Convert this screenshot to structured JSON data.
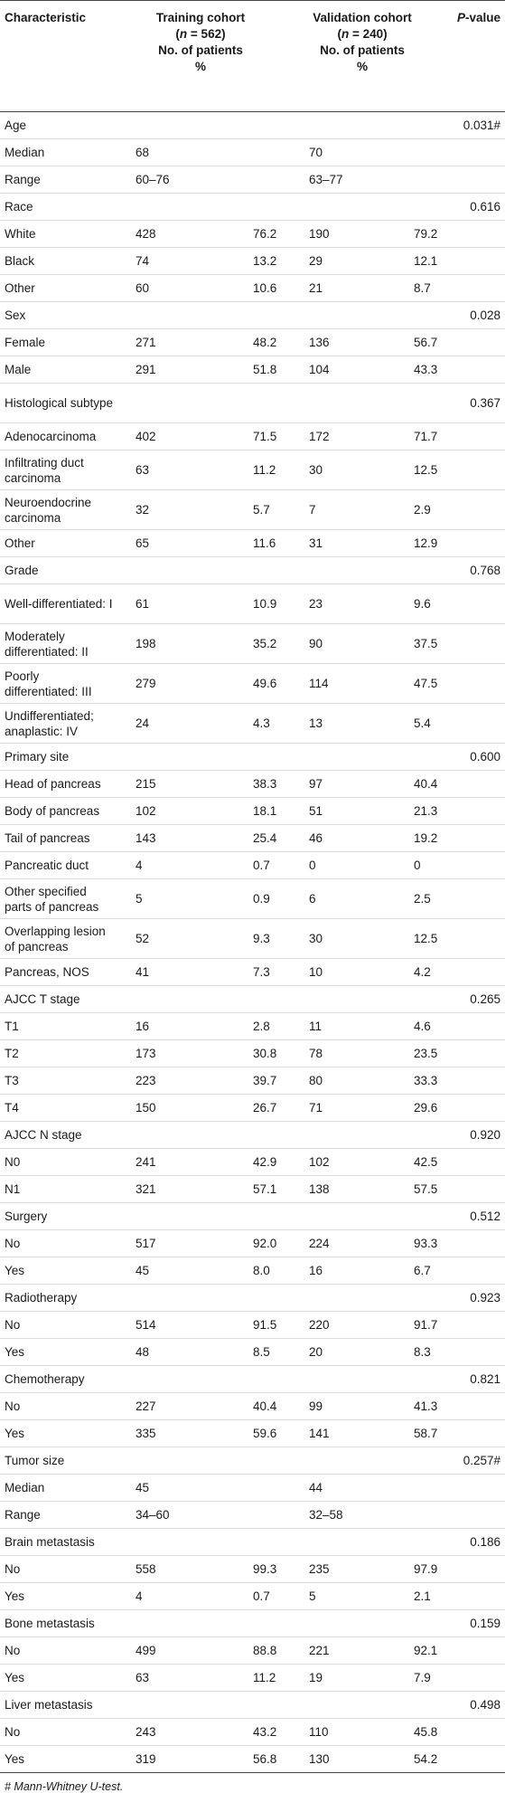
{
  "header": {
    "characteristic": "Characteristic",
    "training_line1": "Training cohort",
    "training_n_prefix": "(",
    "training_n_var": "n",
    "training_n_rest": " = 562)",
    "training_line3": "No. of patients",
    "training_line4": "%",
    "validation_line1": "Validation cohort",
    "validation_n_prefix": "(",
    "validation_n_var": "n",
    "validation_n_rest": " = 240)",
    "validation_line3": "No. of patients",
    "validation_line4": "%",
    "pvalue_var": "P",
    "pvalue_rest": "-value"
  },
  "rows": [
    {
      "label": "Age",
      "t_n": "",
      "t_pct": "",
      "v_n": "",
      "v_pct": "",
      "p": "0.031#"
    },
    {
      "label": "Median",
      "t_n": "68",
      "t_pct": "",
      "v_n": "70",
      "v_pct": "",
      "p": ""
    },
    {
      "label": "Range",
      "t_n": "60–76",
      "t_pct": "",
      "v_n": "63–77",
      "v_pct": "",
      "p": ""
    },
    {
      "label": "Race",
      "t_n": "",
      "t_pct": "",
      "v_n": "",
      "v_pct": "",
      "p": "0.616"
    },
    {
      "label": "White",
      "t_n": "428",
      "t_pct": "76.2",
      "v_n": "190",
      "v_pct": "79.2",
      "p": ""
    },
    {
      "label": "Black",
      "t_n": "74",
      "t_pct": "13.2",
      "v_n": "29",
      "v_pct": "12.1",
      "p": ""
    },
    {
      "label": "Other",
      "t_n": "60",
      "t_pct": "10.6",
      "v_n": "21",
      "v_pct": "8.7",
      "p": ""
    },
    {
      "label": "Sex",
      "t_n": "",
      "t_pct": "",
      "v_n": "",
      "v_pct": "",
      "p": "0.028"
    },
    {
      "label": "Female",
      "t_n": "271",
      "t_pct": "48.2",
      "v_n": "136",
      "v_pct": "56.7",
      "p": ""
    },
    {
      "label": "Male",
      "t_n": "291",
      "t_pct": "51.8",
      "v_n": "104",
      "v_pct": "43.3",
      "p": ""
    },
    {
      "label": "Histological subtype",
      "t_n": "",
      "t_pct": "",
      "v_n": "",
      "v_pct": "",
      "p": "0.367",
      "tall": true
    },
    {
      "label": "Adenocarcinoma",
      "t_n": "402",
      "t_pct": "71.5",
      "v_n": "172",
      "v_pct": "71.7",
      "p": ""
    },
    {
      "label": "Infiltrating duct carcinoma",
      "t_n": "63",
      "t_pct": "11.2",
      "v_n": "30",
      "v_pct": "12.5",
      "p": "",
      "tall": true
    },
    {
      "label": "Neuroendocrine carcinoma",
      "t_n": "32",
      "t_pct": "5.7",
      "v_n": "7",
      "v_pct": "2.9",
      "p": "",
      "tall": true
    },
    {
      "label": "Other",
      "t_n": "65",
      "t_pct": "11.6",
      "v_n": "31",
      "v_pct": "12.9",
      "p": ""
    },
    {
      "label": "Grade",
      "t_n": "",
      "t_pct": "",
      "v_n": "",
      "v_pct": "",
      "p": "0.768"
    },
    {
      "label": "Well-differentiated: I",
      "t_n": "61",
      "t_pct": "10.9",
      "v_n": "23",
      "v_pct": "9.6",
      "p": "",
      "tall": true
    },
    {
      "label": "Moderately differentiated: II",
      "t_n": "198",
      "t_pct": "35.2",
      "v_n": "90",
      "v_pct": "37.5",
      "p": "",
      "tall": true
    },
    {
      "label": "Poorly differentiated: III",
      "t_n": "279",
      "t_pct": "49.6",
      "v_n": "114",
      "v_pct": "47.5",
      "p": "",
      "tall": true
    },
    {
      "label": "Undifferentiated; anaplastic: IV",
      "t_n": "24",
      "t_pct": "4.3",
      "v_n": "13",
      "v_pct": "5.4",
      "p": "",
      "tall": true
    },
    {
      "label": "Primary site",
      "t_n": "",
      "t_pct": "",
      "v_n": "",
      "v_pct": "",
      "p": "0.600"
    },
    {
      "label": "Head of pancreas",
      "t_n": "215",
      "t_pct": "38.3",
      "v_n": "97",
      "v_pct": "40.4",
      "p": ""
    },
    {
      "label": "Body of pancreas",
      "t_n": "102",
      "t_pct": "18.1",
      "v_n": "51",
      "v_pct": "21.3",
      "p": ""
    },
    {
      "label": "Tail of pancreas",
      "t_n": "143",
      "t_pct": "25.4",
      "v_n": "46",
      "v_pct": "19.2",
      "p": ""
    },
    {
      "label": "Pancreatic duct",
      "t_n": "4",
      "t_pct": "0.7",
      "v_n": "0",
      "v_pct": "0",
      "p": ""
    },
    {
      "label": "Other specified parts of pancreas",
      "t_n": "5",
      "t_pct": "0.9",
      "v_n": "6",
      "v_pct": "2.5",
      "p": "",
      "tall": true
    },
    {
      "label": "Overlapping lesion of pancreas",
      "t_n": "52",
      "t_pct": "9.3",
      "v_n": "30",
      "v_pct": "12.5",
      "p": "",
      "tall": true
    },
    {
      "label": "Pancreas, NOS",
      "t_n": "41",
      "t_pct": "7.3",
      "v_n": "10",
      "v_pct": "4.2",
      "p": ""
    },
    {
      "label": "AJCC T stage",
      "t_n": "",
      "t_pct": "",
      "v_n": "",
      "v_pct": "",
      "p": "0.265"
    },
    {
      "label": "T1",
      "t_n": "16",
      "t_pct": "2.8",
      "v_n": "11",
      "v_pct": "4.6",
      "p": ""
    },
    {
      "label": "T2",
      "t_n": "173",
      "t_pct": "30.8",
      "v_n": "78",
      "v_pct": "23.5",
      "p": ""
    },
    {
      "label": "T3",
      "t_n": "223",
      "t_pct": "39.7",
      "v_n": "80",
      "v_pct": "33.3",
      "p": ""
    },
    {
      "label": "T4",
      "t_n": "150",
      "t_pct": "26.7",
      "v_n": "71",
      "v_pct": "29.6",
      "p": ""
    },
    {
      "label": "AJCC N stage",
      "t_n": "",
      "t_pct": "",
      "v_n": "",
      "v_pct": "",
      "p": "0.920"
    },
    {
      "label": "N0",
      "t_n": "241",
      "t_pct": "42.9",
      "v_n": "102",
      "v_pct": "42.5",
      "p": ""
    },
    {
      "label": "N1",
      "t_n": "321",
      "t_pct": "57.1",
      "v_n": "138",
      "v_pct": "57.5",
      "p": ""
    },
    {
      "label": "Surgery",
      "t_n": "",
      "t_pct": "",
      "v_n": "",
      "v_pct": "",
      "p": "0.512"
    },
    {
      "label": "No",
      "t_n": "517",
      "t_pct": "92.0",
      "v_n": "224",
      "v_pct": "93.3",
      "p": ""
    },
    {
      "label": "Yes",
      "t_n": "45",
      "t_pct": "8.0",
      "v_n": "16",
      "v_pct": "6.7",
      "p": ""
    },
    {
      "label": "Radiotherapy",
      "t_n": "",
      "t_pct": "",
      "v_n": "",
      "v_pct": "",
      "p": "0.923"
    },
    {
      "label": "No",
      "t_n": "514",
      "t_pct": "91.5",
      "v_n": "220",
      "v_pct": "91.7",
      "p": ""
    },
    {
      "label": "Yes",
      "t_n": "48",
      "t_pct": "8.5",
      "v_n": "20",
      "v_pct": "8.3",
      "p": ""
    },
    {
      "label": "Chemotherapy",
      "t_n": "",
      "t_pct": "",
      "v_n": "",
      "v_pct": "",
      "p": "0.821"
    },
    {
      "label": "No",
      "t_n": "227",
      "t_pct": "40.4",
      "v_n": "99",
      "v_pct": "41.3",
      "p": ""
    },
    {
      "label": "Yes",
      "t_n": "335",
      "t_pct": "59.6",
      "v_n": "141",
      "v_pct": "58.7",
      "p": ""
    },
    {
      "label": "Tumor size",
      "t_n": "",
      "t_pct": "",
      "v_n": "",
      "v_pct": "",
      "p": "0.257#"
    },
    {
      "label": "Median",
      "t_n": "45",
      "t_pct": "",
      "v_n": "44",
      "v_pct": "",
      "p": ""
    },
    {
      "label": "Range",
      "t_n": "34–60",
      "t_pct": "",
      "v_n": "32–58",
      "v_pct": "",
      "p": ""
    },
    {
      "label": "Brain metastasis",
      "t_n": "",
      "t_pct": "",
      "v_n": "",
      "v_pct": "",
      "p": "0.186"
    },
    {
      "label": "No",
      "t_n": "558",
      "t_pct": "99.3",
      "v_n": "235",
      "v_pct": "97.9",
      "p": ""
    },
    {
      "label": "Yes",
      "t_n": "4",
      "t_pct": "0.7",
      "v_n": "5",
      "v_pct": "2.1",
      "p": ""
    },
    {
      "label": "Bone metastasis",
      "t_n": "",
      "t_pct": "",
      "v_n": "",
      "v_pct": "",
      "p": "0.159"
    },
    {
      "label": "No",
      "t_n": "499",
      "t_pct": "88.8",
      "v_n": "221",
      "v_pct": "92.1",
      "p": ""
    },
    {
      "label": "Yes",
      "t_n": "63",
      "t_pct": "11.2",
      "v_n": "19",
      "v_pct": "7.9",
      "p": ""
    },
    {
      "label": "Liver metastasis",
      "t_n": "",
      "t_pct": "",
      "v_n": "",
      "v_pct": "",
      "p": "0.498"
    },
    {
      "label": "No",
      "t_n": "243",
      "t_pct": "43.2",
      "v_n": "110",
      "v_pct": "45.8",
      "p": ""
    },
    {
      "label": "Yes",
      "t_n": "319",
      "t_pct": "56.8",
      "v_n": "130",
      "v_pct": "54.2",
      "p": ""
    }
  ],
  "footnote": "# Mann-Whitney U-test."
}
